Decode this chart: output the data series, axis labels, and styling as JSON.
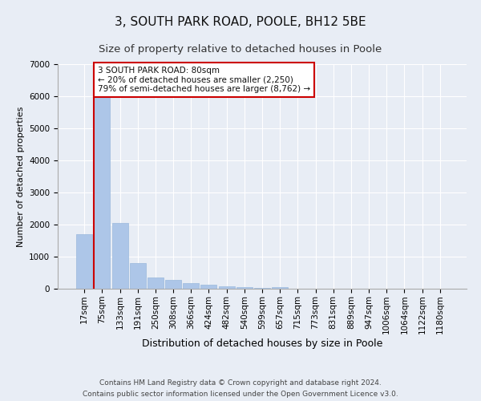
{
  "title1": "3, SOUTH PARK ROAD, POOLE, BH12 5BE",
  "title2": "Size of property relative to detached houses in Poole",
  "xlabel": "Distribution of detached houses by size in Poole",
  "ylabel": "Number of detached properties",
  "bar_labels": [
    "17sqm",
    "75sqm",
    "133sqm",
    "191sqm",
    "250sqm",
    "308sqm",
    "366sqm",
    "424sqm",
    "482sqm",
    "540sqm",
    "599sqm",
    "657sqm",
    "715sqm",
    "773sqm",
    "831sqm",
    "889sqm",
    "947sqm",
    "1006sqm",
    "1064sqm",
    "1122sqm",
    "1180sqm"
  ],
  "bar_values": [
    1700,
    6100,
    2050,
    800,
    350,
    270,
    185,
    120,
    80,
    50,
    35,
    45,
    0,
    0,
    0,
    0,
    0,
    0,
    0,
    0,
    0
  ],
  "bar_color": "#adc6e8",
  "bar_edge_color": "#9ab8dc",
  "background_color": "#e8edf5",
  "plot_bg_color": "#e8edf5",
  "grid_color": "#ffffff",
  "vline_color": "#cc0000",
  "vline_x_index": 1,
  "annotation_text_line1": "3 SOUTH PARK ROAD: 80sqm",
  "annotation_text_line2": "← 20% of detached houses are smaller (2,250)",
  "annotation_text_line3": "79% of semi-detached houses are larger (8,762) →",
  "annotation_box_facecolor": "#ffffff",
  "annotation_box_edgecolor": "#cc0000",
  "ylim": [
    0,
    7000
  ],
  "yticks": [
    0,
    1000,
    2000,
    3000,
    4000,
    5000,
    6000,
    7000
  ],
  "footer_line1": "Contains HM Land Registry data © Crown copyright and database right 2024.",
  "footer_line2": "Contains public sector information licensed under the Open Government Licence v3.0.",
  "title1_fontsize": 11,
  "title2_fontsize": 9.5,
  "xlabel_fontsize": 9,
  "ylabel_fontsize": 8,
  "tick_fontsize": 7.5,
  "annotation_fontsize": 7.5,
  "footer_fontsize": 6.5
}
